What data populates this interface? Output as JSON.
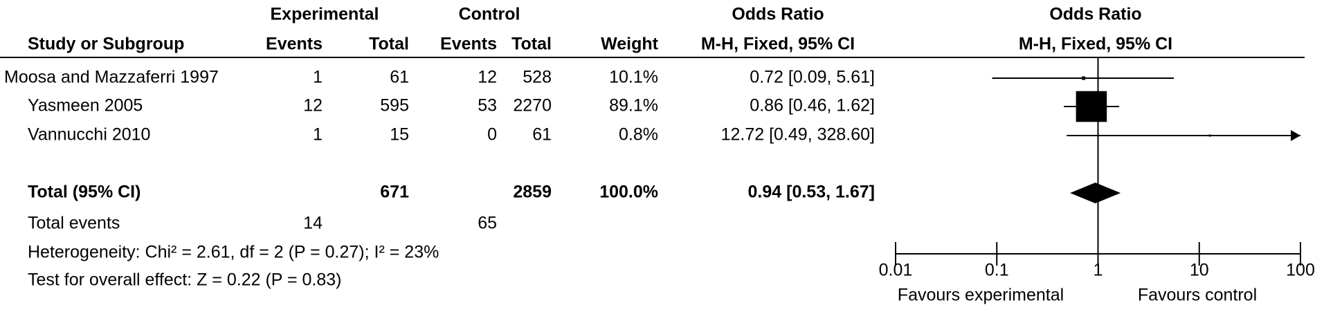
{
  "chart_data": {
    "type": "forest",
    "headers": {
      "group1": "Experimental",
      "group2": "Control",
      "effect_table": "Odds Ratio",
      "effect_plot": "Odds Ratio",
      "study": "Study or Subgroup",
      "events1": "Events",
      "total1": "Total",
      "events2": "Events",
      "total2": "Total",
      "weight": "Weight",
      "method_table": "M-H, Fixed, 95% CI",
      "method_plot": "M-H, Fixed, 95% CI"
    },
    "studies": [
      {
        "name": "Moosa and Mazzaferri 1997",
        "events1": 1,
        "total1": 61,
        "events2": 12,
        "total2": 528,
        "weight": 10.1,
        "weight_label": "10.1%",
        "or": 0.72,
        "ci_low": 0.09,
        "ci_high": 5.61,
        "or_label": "0.72 [0.09, 5.61]"
      },
      {
        "name": "Yasmeen 2005",
        "events1": 12,
        "total1": 595,
        "events2": 53,
        "total2": 2270,
        "weight": 89.1,
        "weight_label": "89.1%",
        "or": 0.86,
        "ci_low": 0.46,
        "ci_high": 1.62,
        "or_label": "0.86 [0.46, 1.62]"
      },
      {
        "name": "Vannucchi 2010",
        "events1": 1,
        "total1": 15,
        "events2": 0,
        "total2": 61,
        "weight": 0.8,
        "weight_label": "0.8%",
        "or": 12.72,
        "ci_low": 0.49,
        "ci_high": 328.6,
        "or_label": "12.72 [0.49, 328.60]"
      }
    ],
    "total": {
      "name": "Total (95% CI)",
      "total1": 671,
      "total2": 2859,
      "weight_label": "100.0%",
      "or": 0.94,
      "ci_low": 0.53,
      "ci_high": 1.67,
      "or_label": "0.94 [0.53, 1.67]"
    },
    "total_events": {
      "name": "Total events",
      "events1": 14,
      "events2": 65
    },
    "heterogeneity": "Heterogeneity: Chi² = 2.61, df = 2 (P = 0.27); I² = 23%",
    "overall_effect": "Test for overall effect: Z = 0.22 (P = 0.83)",
    "xlim": [
      0.01,
      100
    ],
    "xticks": [
      0.01,
      0.1,
      1,
      10,
      100
    ],
    "log": true,
    "favours_left": "Favours experimental",
    "favours_right": "Favours control",
    "color": "#000000"
  }
}
